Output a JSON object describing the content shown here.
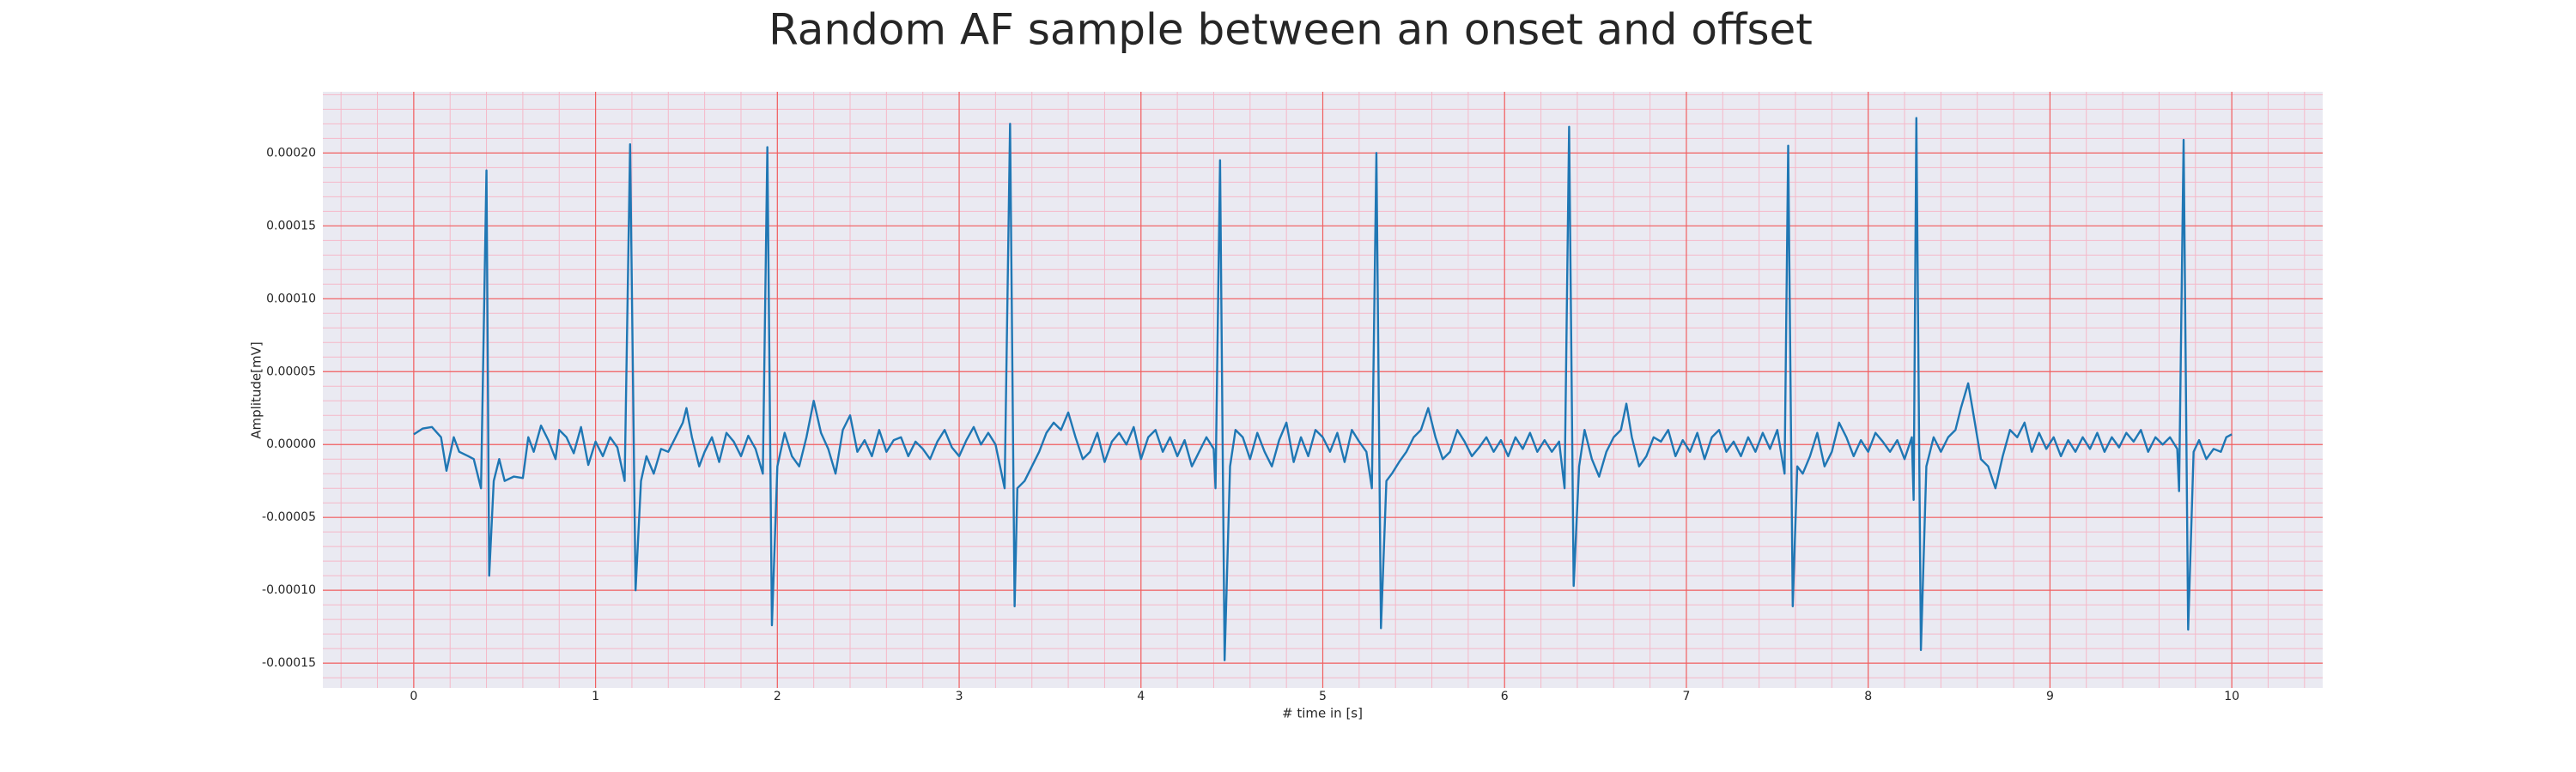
{
  "chart_data": {
    "type": "line",
    "title": "Random AF sample between an onset and offset",
    "x_label": "# time in [s]",
    "y_label": "Amplitude[mV]",
    "xlim": [
      -0.5,
      10.5
    ],
    "ylim": [
      -0.000167,
      0.000242
    ],
    "xticks": [
      0,
      1,
      2,
      3,
      4,
      5,
      6,
      7,
      8,
      9,
      10
    ],
    "yticks": [
      {
        "value": -0.00015,
        "label": "-0.00015"
      },
      {
        "value": -0.0001,
        "label": "-0.00010"
      },
      {
        "value": -5e-05,
        "label": "-0.00005"
      },
      {
        "value": 0,
        "label": "0.00000"
      },
      {
        "value": 5e-05,
        "label": "0.00005"
      },
      {
        "value": 0.0001,
        "label": "0.00010"
      },
      {
        "value": 0.00015,
        "label": "0.00015"
      },
      {
        "value": 0.0002,
        "label": "0.00020"
      }
    ],
    "xminorticks": [
      -0.4,
      -0.2,
      0,
      0.2,
      0.4,
      0.6,
      0.8,
      1,
      1.2,
      1.4,
      1.6,
      1.8,
      2,
      2.2,
      2.4,
      2.6,
      2.8,
      3,
      3.2,
      3.4,
      3.6,
      3.8,
      4,
      4.2,
      4.4,
      4.6,
      4.8,
      5,
      5.2,
      5.4,
      5.6,
      5.8,
      6,
      6.2,
      6.4,
      6.6,
      6.8,
      7,
      7.2,
      7.4,
      7.6,
      7.8,
      8,
      8.2,
      8.4,
      8.6,
      8.8,
      9,
      9.2,
      9.4,
      9.6,
      9.8,
      10,
      10.2,
      10.4
    ],
    "yminorticks": [
      -0.00016,
      -0.00015,
      -0.00014,
      -0.00013,
      -0.00012,
      -0.00011,
      -0.0001,
      -9e-05,
      -8e-05,
      -7e-05,
      -6e-05,
      -5e-05,
      -4e-05,
      -3e-05,
      -2e-05,
      -1e-05,
      0,
      1e-05,
      2e-05,
      3e-05,
      4e-05,
      5e-05,
      6e-05,
      7e-05,
      8e-05,
      9e-05,
      0.0001,
      0.00011,
      0.00012,
      0.00013,
      0.00014,
      0.00015,
      0.00016,
      0.00017,
      0.00018,
      0.00019,
      0.0002,
      0.00021,
      0.00022,
      0.00023,
      0.00024
    ],
    "grid": true,
    "grid_color": "#f06060",
    "minor_grid_color": "#f5b8c8",
    "background": "#eaeaf2",
    "x": [
      0,
      0.05,
      0.1,
      0.15,
      0.18,
      0.22,
      0.25,
      0.3,
      0.33,
      0.37,
      0.4,
      0.415,
      0.44,
      0.47,
      0.5,
      0.55,
      0.6,
      0.63,
      0.66,
      0.7,
      0.74,
      0.78,
      0.8,
      0.84,
      0.88,
      0.92,
      0.96,
      1,
      1.04,
      1.08,
      1.12,
      1.16,
      1.19,
      1.22,
      1.25,
      1.28,
      1.32,
      1.36,
      1.4,
      1.44,
      1.48,
      1.5,
      1.53,
      1.57,
      1.6,
      1.64,
      1.68,
      1.72,
      1.76,
      1.8,
      1.84,
      1.88,
      1.92,
      1.945,
      1.97,
      2,
      2.04,
      2.08,
      2.12,
      2.16,
      2.2,
      2.24,
      2.28,
      2.32,
      2.36,
      2.4,
      2.44,
      2.48,
      2.52,
      2.56,
      2.6,
      2.64,
      2.68,
      2.72,
      2.76,
      2.8,
      2.84,
      2.88,
      2.92,
      2.96,
      3,
      3.04,
      3.08,
      3.12,
      3.16,
      3.2,
      3.25,
      3.28,
      3.305,
      3.32,
      3.36,
      3.4,
      3.44,
      3.48,
      3.52,
      3.56,
      3.6,
      3.64,
      3.68,
      3.72,
      3.76,
      3.8,
      3.84,
      3.88,
      3.92,
      3.96,
      4,
      4.04,
      4.08,
      4.12,
      4.16,
      4.2,
      4.24,
      4.28,
      4.32,
      4.36,
      4.4,
      4.41,
      4.435,
      4.46,
      4.49,
      4.52,
      4.56,
      4.6,
      4.64,
      4.68,
      4.72,
      4.76,
      4.8,
      4.84,
      4.88,
      4.92,
      4.96,
      5,
      5.04,
      5.08,
      5.12,
      5.16,
      5.2,
      5.24,
      5.27,
      5.295,
      5.32,
      5.35,
      5.38,
      5.42,
      5.46,
      5.5,
      5.54,
      5.58,
      5.62,
      5.66,
      5.7,
      5.74,
      5.78,
      5.82,
      5.86,
      5.9,
      5.94,
      5.98,
      6.02,
      6.06,
      6.1,
      6.14,
      6.18,
      6.22,
      6.26,
      6.3,
      6.33,
      6.355,
      6.38,
      6.41,
      6.44,
      6.48,
      6.52,
      6.56,
      6.6,
      6.64,
      6.67,
      6.7,
      6.74,
      6.78,
      6.82,
      6.86,
      6.9,
      6.94,
      6.98,
      7.02,
      7.06,
      7.1,
      7.14,
      7.18,
      7.22,
      7.26,
      7.3,
      7.34,
      7.38,
      7.42,
      7.46,
      7.5,
      7.54,
      7.56,
      7.585,
      7.61,
      7.64,
      7.68,
      7.72,
      7.76,
      7.8,
      7.84,
      7.88,
      7.92,
      7.96,
      8,
      8.04,
      8.08,
      8.12,
      8.16,
      8.2,
      8.24,
      8.25,
      8.265,
      8.29,
      8.32,
      8.36,
      8.4,
      8.44,
      8.48,
      8.51,
      8.55,
      8.58,
      8.62,
      8.66,
      8.7,
      8.74,
      8.78,
      8.82,
      8.86,
      8.9,
      8.94,
      8.98,
      9.02,
      9.06,
      9.1,
      9.14,
      9.18,
      9.22,
      9.26,
      9.3,
      9.34,
      9.38,
      9.42,
      9.46,
      9.5,
      9.54,
      9.58,
      9.62,
      9.66,
      9.7,
      9.71,
      9.735,
      9.76,
      9.79,
      9.82,
      9.86,
      9.9,
      9.94,
      9.97,
      10
    ],
    "series": [
      {
        "color": "#1f77b4",
        "values": [
          7e-06,
          1.1e-05,
          1.2e-05,
          5e-06,
          -1.8e-05,
          5e-06,
          -5e-06,
          -8e-06,
          -1e-05,
          -3e-05,
          0.000188,
          -9e-05,
          -2.5e-05,
          -1e-05,
          -2.5e-05,
          -2.2e-05,
          -2.3e-05,
          5e-06,
          -5e-06,
          1.3e-05,
          3e-06,
          -1e-05,
          1e-05,
          5e-06,
          -6e-06,
          1.2e-05,
          -1.4e-05,
          2e-06,
          -8e-06,
          5e-06,
          -2e-06,
          -2.5e-05,
          0.000206,
          -0.0001,
          -2.5e-05,
          -8e-06,
          -2e-05,
          -3e-06,
          -5e-06,
          5e-06,
          1.5e-05,
          2.5e-05,
          5e-06,
          -1.5e-05,
          -5e-06,
          5e-06,
          -1.2e-05,
          8e-06,
          2e-06,
          -8e-06,
          6e-06,
          -3e-06,
          -2e-05,
          0.000204,
          -0.000124,
          -1.5e-05,
          8e-06,
          -8e-06,
          -1.5e-05,
          5e-06,
          3e-05,
          8e-06,
          -3e-06,
          -2e-05,
          1e-05,
          2e-05,
          -5e-06,
          3e-06,
          -8e-06,
          1e-05,
          -5e-06,
          3e-06,
          5e-06,
          -8e-06,
          2e-06,
          -3e-06,
          -1e-05,
          2e-06,
          1e-05,
          -2e-06,
          -8e-06,
          3e-06,
          1.2e-05,
          0,
          8e-06,
          0,
          -3e-05,
          0.00022,
          -0.000111,
          -3e-05,
          -2.5e-05,
          -1.5e-05,
          -5e-06,
          8e-06,
          1.5e-05,
          1e-05,
          2.2e-05,
          5e-06,
          -1e-05,
          -5e-06,
          8e-06,
          -1.2e-05,
          2e-06,
          8e-06,
          0,
          1.2e-05,
          -1e-05,
          5e-06,
          1e-05,
          -5e-06,
          5e-06,
          -8e-06,
          3e-06,
          -1.5e-05,
          -5e-06,
          5e-06,
          -3e-06,
          -3e-05,
          0.000195,
          -0.000148,
          -1.5e-05,
          1e-05,
          5e-06,
          -1e-05,
          8e-06,
          -5e-06,
          -1.5e-05,
          3e-06,
          1.5e-05,
          -1.2e-05,
          5e-06,
          -8e-06,
          1e-05,
          5e-06,
          -5e-06,
          8e-06,
          -1.2e-05,
          1e-05,
          2e-06,
          -5e-06,
          -3e-05,
          0.0002,
          -0.000126,
          -2.5e-05,
          -2e-05,
          -1.2e-05,
          -5e-06,
          5e-06,
          1e-05,
          2.5e-05,
          5e-06,
          -1e-05,
          -5e-06,
          1e-05,
          2e-06,
          -8e-06,
          -2e-06,
          5e-06,
          -5e-06,
          3e-06,
          -8e-06,
          5e-06,
          -3e-06,
          8e-06,
          -5e-06,
          3e-06,
          -5e-06,
          2e-06,
          -3e-05,
          0.000218,
          -9.7e-05,
          -1.5e-05,
          1e-05,
          -1e-05,
          -2.2e-05,
          -5e-06,
          5e-06,
          1e-05,
          2.8e-05,
          5e-06,
          -1.5e-05,
          -8e-06,
          5e-06,
          2e-06,
          1e-05,
          -8e-06,
          3e-06,
          -5e-06,
          8e-06,
          -1e-05,
          5e-06,
          1e-05,
          -5e-06,
          2e-06,
          -8e-06,
          5e-06,
          -5e-06,
          8e-06,
          -3e-06,
          1e-05,
          -2e-05,
          0.000205,
          -0.000111,
          -1.5e-05,
          -2e-05,
          -8e-06,
          8e-06,
          -1.5e-05,
          -5e-06,
          1.5e-05,
          5e-06,
          -8e-06,
          3e-06,
          -5e-06,
          8e-06,
          2e-06,
          -5e-06,
          3e-06,
          -1e-05,
          5e-06,
          -3.8e-05,
          0.000224,
          -0.000141,
          -1.5e-05,
          5e-06,
          -5e-06,
          5e-06,
          1e-05,
          2.5e-05,
          4.2e-05,
          2e-05,
          -1e-05,
          -1.5e-05,
          -3e-05,
          -8e-06,
          1e-05,
          5e-06,
          1.5e-05,
          -5e-06,
          8e-06,
          -3e-06,
          5e-06,
          -8e-06,
          3e-06,
          -5e-06,
          5e-06,
          -3e-06,
          8e-06,
          -5e-06,
          5e-06,
          -2e-06,
          8e-06,
          2e-06,
          1e-05,
          -5e-06,
          5e-06,
          0,
          5e-06,
          -3e-06,
          -3.2e-05,
          0.000209,
          -0.000127,
          -5e-06,
          3e-06,
          -1e-05,
          -3e-06,
          -5e-06,
          5e-06,
          7e-06
        ]
      }
    ]
  }
}
